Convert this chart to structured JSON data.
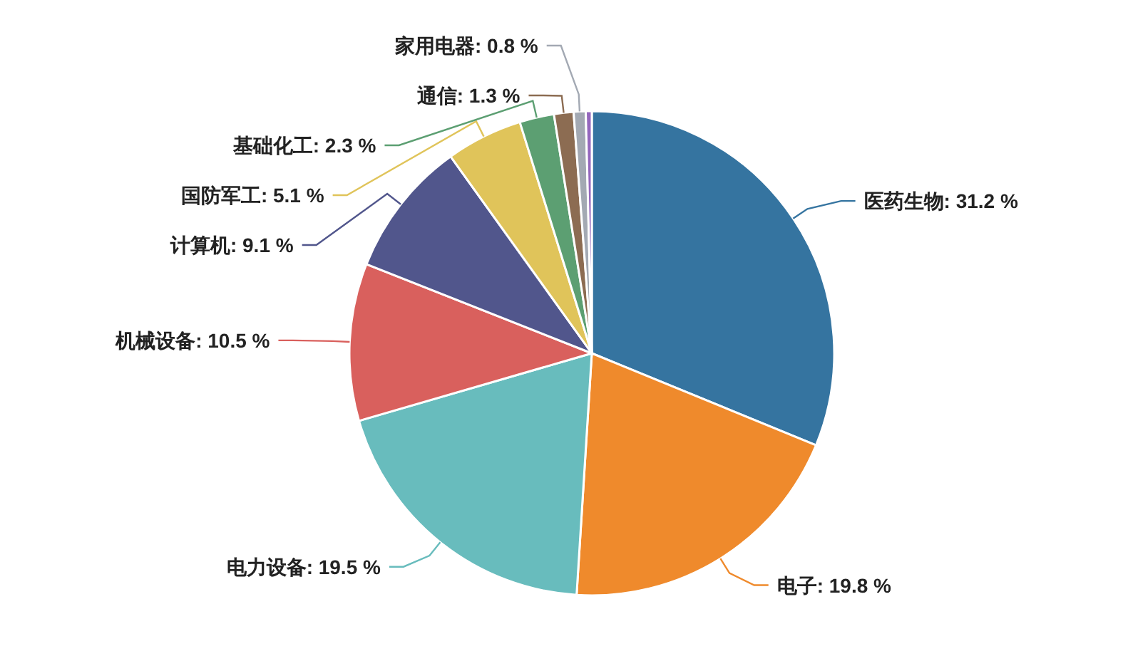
{
  "chart_data": {
    "type": "pie",
    "categories": [
      "医药生物",
      "电子",
      "电力设备",
      "机械设备",
      "计算机",
      "国防军工",
      "基础化工",
      "通信",
      "家用电器",
      null
    ],
    "values": [
      31.2,
      19.8,
      19.5,
      10.5,
      9.1,
      5.1,
      2.3,
      1.3,
      0.8,
      0.4
    ],
    "value_labels": [
      "31.2 %",
      "19.8 %",
      "19.5 %",
      "10.5 %",
      "9.1 %",
      "5.1 %",
      "2.3 %",
      "1.3 %",
      "0.8 %",
      null
    ],
    "colors": [
      "#3574a0",
      "#ef8a2c",
      "#68bcbd",
      "#d9605d",
      "#51568c",
      "#e0c45a",
      "#5c9f72",
      "#8c6c52",
      "#a3a9b3",
      "#9467bd"
    ]
  }
}
